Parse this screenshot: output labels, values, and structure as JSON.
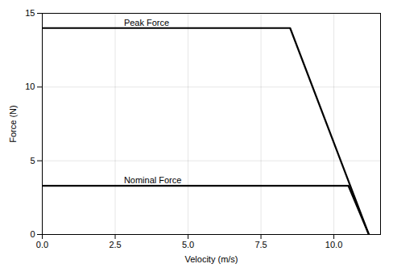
{
  "chart_data": {
    "type": "line",
    "x_label": "Velocity (m/s)",
    "y_label": "Force (N)",
    "series": [
      {
        "color": "#000000",
        "x": [
          0.0,
          8.5,
          11.2
        ],
        "values": [
          14.0,
          14.0,
          0.0
        ]
      },
      {
        "color": "#000000",
        "x": [
          0.0,
          10.5,
          11.2
        ],
        "values": [
          3.3,
          3.3,
          0.0
        ]
      }
    ],
    "annotations": [
      {
        "text": "Peak Force",
        "x": 2.8,
        "y": 14.0
      },
      {
        "text": "Nominal Force",
        "x": 2.8,
        "y": 3.3
      }
    ],
    "xlim": [
      0.0,
      11.6
    ],
    "ylim": [
      0,
      15
    ],
    "xticks": [
      {
        "value": 0.0,
        "label": "0.0"
      },
      2.5,
      {
        "value": 5.0,
        "label": "5.0"
      },
      7.5,
      {
        "value": 10.0,
        "label": "10.0"
      }
    ],
    "yticks": [
      0,
      5,
      10,
      15
    ],
    "grid": true
  }
}
